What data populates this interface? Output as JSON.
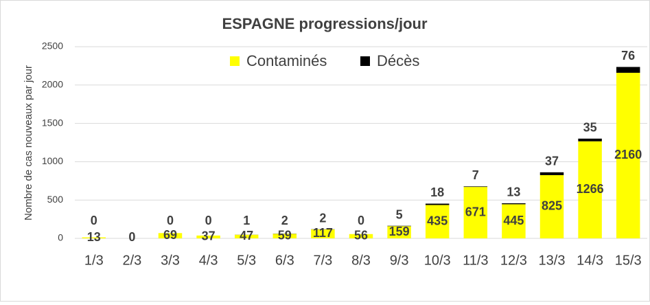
{
  "chart_data": {
    "type": "stacked-bar",
    "title": "ESPAGNE progressions/jour",
    "y_label": "Nombre de cas nouveaux par jour",
    "categories": [
      "1/3",
      "2/3",
      "3/3",
      "4/3",
      "5/3",
      "6/3",
      "7/3",
      "8/3",
      "9/3",
      "10/3",
      "11/3",
      "12/3",
      "13/3",
      "14/3",
      "15/3"
    ],
    "series": [
      {
        "name": "Contaminés",
        "color": "#ffff00",
        "values": [
          13,
          0,
          69,
          37,
          47,
          59,
          117,
          56,
          159,
          435,
          671,
          445,
          825,
          1266,
          2160
        ]
      },
      {
        "name": "Décès",
        "color": "#000000",
        "values": [
          0,
          null,
          0,
          0,
          1,
          2,
          2,
          0,
          5,
          18,
          7,
          13,
          37,
          35,
          76
        ]
      }
    ],
    "ylim": [
      0,
      2500
    ],
    "yticks": [
      0,
      500,
      1000,
      1500,
      2000,
      2500
    ],
    "grid": true,
    "legend": "top"
  }
}
